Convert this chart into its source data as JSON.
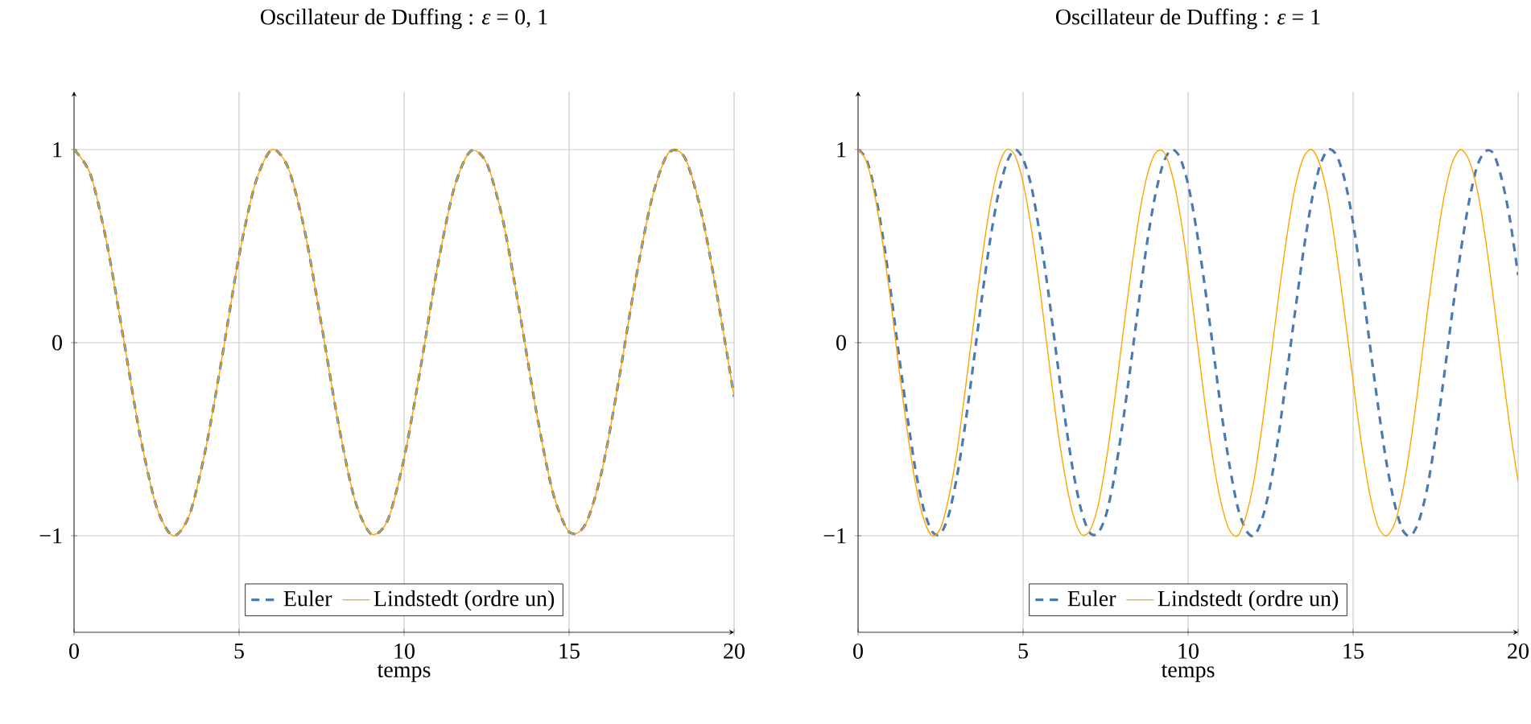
{
  "chart_data": [
    {
      "type": "line",
      "title": "Oscillateur de Duffing : *ε* = 0, 1",
      "xlabel": "temps",
      "x": [
        0,
        0.5,
        1,
        1.5,
        2,
        2.5,
        3,
        3.5,
        4,
        4.5,
        5,
        5.5,
        6,
        6.5,
        7,
        7.5,
        8,
        8.5,
        9,
        9.5,
        10,
        10.5,
        11,
        11.5,
        12,
        12.5,
        13,
        13.5,
        14,
        14.5,
        15,
        15.5,
        16,
        16.5,
        17,
        17.5,
        18,
        18.5,
        19,
        19.5,
        20
      ],
      "series": [
        {
          "name": "Euler",
          "color": "#4a7ab0",
          "line_style": "dashed",
          "values": [
            1,
            0.87,
            0.51,
            0.02,
            -0.48,
            -0.85,
            -1.0,
            -0.89,
            -0.54,
            -0.06,
            0.45,
            0.83,
            1.0,
            0.9,
            0.57,
            0.09,
            -0.41,
            -0.81,
            -0.99,
            -0.92,
            -0.6,
            -0.13,
            0.38,
            0.79,
            0.99,
            0.93,
            0.63,
            0.16,
            -0.35,
            -0.77,
            -0.98,
            -0.94,
            -0.66,
            -0.2,
            0.31,
            0.74,
            0.98,
            0.96,
            0.68,
            0.23,
            -0.28
          ]
        },
        {
          "name": "Lindstedt (ordre un)",
          "color": "#ffa500",
          "line_style": "solid",
          "values": [
            1,
            0.87,
            0.51,
            0.02,
            -0.48,
            -0.85,
            -1.0,
            -0.89,
            -0.54,
            -0.06,
            0.45,
            0.83,
            1.0,
            0.9,
            0.57,
            0.09,
            -0.41,
            -0.81,
            -0.99,
            -0.92,
            -0.6,
            -0.13,
            0.38,
            0.79,
            0.99,
            0.93,
            0.63,
            0.16,
            -0.35,
            -0.77,
            -0.98,
            -0.94,
            -0.66,
            -0.2,
            0.31,
            0.74,
            0.98,
            0.96,
            0.68,
            0.23,
            -0.28
          ]
        }
      ],
      "xlim": [
        0,
        20
      ],
      "ylim": [
        -1.5,
        1.3
      ],
      "xticks": [
        0,
        5,
        10,
        15,
        20
      ],
      "yticks": [
        {
          "value": -1,
          "label": "−1"
        },
        0,
        1
      ],
      "grid": true,
      "legend": "bottom"
    },
    {
      "type": "line",
      "title": "Oscillateur de Duffing : *ε* = 1",
      "xlabel": "temps",
      "x": [
        0,
        0.25,
        0.5,
        0.75,
        1,
        1.25,
        1.5,
        1.75,
        2,
        2.25,
        2.5,
        2.75,
        3,
        3.25,
        3.5,
        3.75,
        4,
        4.25,
        4.5,
        4.75,
        5,
        5.25,
        5.5,
        5.75,
        6,
        6.25,
        6.5,
        6.75,
        7,
        7.25,
        7.5,
        7.75,
        8,
        8.25,
        8.5,
        8.75,
        9,
        9.25,
        9.5,
        9.75,
        10,
        10.25,
        10.5,
        10.75,
        11,
        11.25,
        11.5,
        11.75,
        12,
        12.25,
        12.5,
        12.75,
        13,
        13.25,
        13.5,
        13.75,
        14,
        14.25,
        14.5,
        14.75,
        15,
        15.25,
        15.5,
        15.75,
        16,
        16.25,
        16.5,
        16.75,
        17,
        17.25,
        17.5,
        17.75,
        18,
        18.25,
        18.5,
        18.75,
        19,
        19.25,
        19.5,
        19.75,
        20
      ],
      "series": [
        {
          "name": "Euler",
          "color": "#4a7ab0",
          "line_style": "dashed",
          "values": [
            1,
            0.95,
            0.79,
            0.55,
            0.25,
            -0.08,
            -0.39,
            -0.67,
            -0.87,
            -0.98,
            -0.99,
            -0.89,
            -0.69,
            -0.42,
            -0.1,
            0.23,
            0.53,
            0.77,
            0.93,
            1.0,
            0.95,
            0.81,
            0.57,
            0.28,
            -0.05,
            -0.37,
            -0.65,
            -0.86,
            -0.98,
            -0.99,
            -0.9,
            -0.71,
            -0.44,
            -0.13,
            0.2,
            0.51,
            0.76,
            0.93,
            1.0,
            0.96,
            0.82,
            0.59,
            0.3,
            -0.02,
            -0.35,
            -0.63,
            -0.85,
            -0.97,
            -1.0,
            -0.91,
            -0.73,
            -0.47,
            -0.15,
            0.17,
            0.48,
            0.74,
            0.92,
            1.0,
            0.97,
            0.84,
            0.62,
            0.33,
            0.0,
            -0.32,
            -0.61,
            -0.83,
            -0.97,
            -1.0,
            -0.92,
            -0.75,
            -0.49,
            -0.18,
            0.15,
            0.46,
            0.72,
            0.91,
            0.99,
            0.98,
            0.85,
            0.64,
            0.35
          ]
        },
        {
          "name": "Lindstedt (ordre un)",
          "color": "#ffa500",
          "line_style": "solid",
          "values": [
            1,
            0.94,
            0.77,
            0.51,
            0.2,
            -0.15,
            -0.47,
            -0.74,
            -0.92,
            -1.0,
            -0.96,
            -0.8,
            -0.56,
            -0.24,
            0.1,
            0.43,
            0.71,
            0.91,
            1.0,
            0.97,
            0.83,
            0.59,
            0.29,
            -0.05,
            -0.39,
            -0.67,
            -0.88,
            -0.99,
            -0.98,
            -0.86,
            -0.63,
            -0.33,
            0.01,
            0.34,
            0.64,
            0.86,
            0.98,
            0.99,
            0.88,
            0.67,
            0.38,
            0.04,
            -0.3,
            -0.6,
            -0.83,
            -0.97,
            -1.0,
            -0.9,
            -0.71,
            -0.42,
            -0.09,
            0.25,
            0.56,
            0.81,
            0.96,
            1.0,
            0.92,
            0.74,
            0.46,
            0.14,
            -0.2,
            -0.52,
            -0.78,
            -0.95,
            -1.0,
            -0.94,
            -0.77,
            -0.51,
            -0.19,
            0.16,
            0.48,
            0.75,
            0.93,
            1.0,
            0.95,
            0.8,
            0.55,
            0.23,
            -0.11,
            -0.44,
            -0.72
          ]
        }
      ],
      "xlim": [
        0,
        20
      ],
      "ylim": [
        -1.5,
        1.3
      ],
      "xticks": [
        0,
        5,
        10,
        15,
        20
      ],
      "yticks": [
        {
          "value": -1,
          "label": "−1"
        },
        0,
        1
      ],
      "grid": true,
      "legend": "bottom"
    }
  ]
}
